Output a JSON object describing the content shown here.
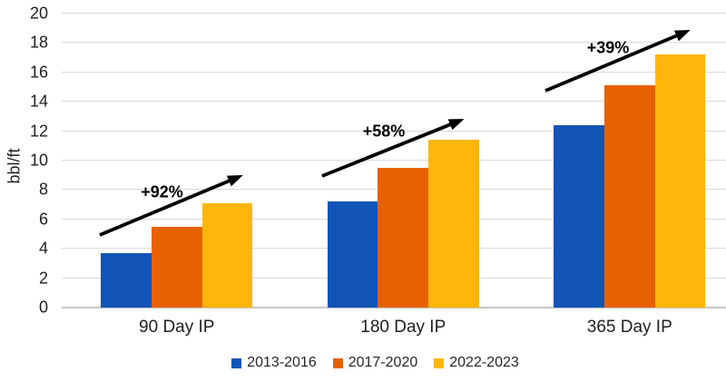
{
  "chart_data": {
    "type": "bar",
    "title": "",
    "xlabel": "",
    "ylabel": "bbl/ft",
    "categories": [
      "90 Day IP",
      "180 Day IP",
      "365 Day IP"
    ],
    "series": [
      {
        "name": "2013-2016",
        "color": "#1254B5",
        "values": [
          3.7,
          7.2,
          12.4
        ]
      },
      {
        "name": "2017-2020",
        "color": "#E86100",
        "values": [
          5.5,
          9.5,
          15.1
        ]
      },
      {
        "name": "2022-2023",
        "color": "#FFB60A",
        "values": [
          7.1,
          11.4,
          17.2
        ]
      }
    ],
    "ylim": [
      0,
      20
    ],
    "ytick_step": 2,
    "grid": true,
    "legend_position": "bottom",
    "annotations": [
      {
        "label": "+92%",
        "x1": 0.16,
        "y1": 4.94,
        "x2": 0.774,
        "y2": 8.89,
        "label_x": 0.435,
        "label_y": 7.87
      },
      {
        "label": "+58%",
        "x1": 1.142,
        "y1": 8.95,
        "x2": 1.751,
        "y2": 12.72,
        "label_x": 1.415,
        "label_y": 11.98
      },
      {
        "label": "+39%",
        "x1": 2.128,
        "y1": 14.75,
        "x2": 2.75,
        "y2": 18.77,
        "label_x": 2.405,
        "label_y": 17.65
      }
    ]
  },
  "colors": {
    "background": "#ffffff",
    "gridline": "#d9d9d9",
    "zero_line": "#c6c6c6",
    "text": "#1f1f1f",
    "arrow": "#000000"
  }
}
